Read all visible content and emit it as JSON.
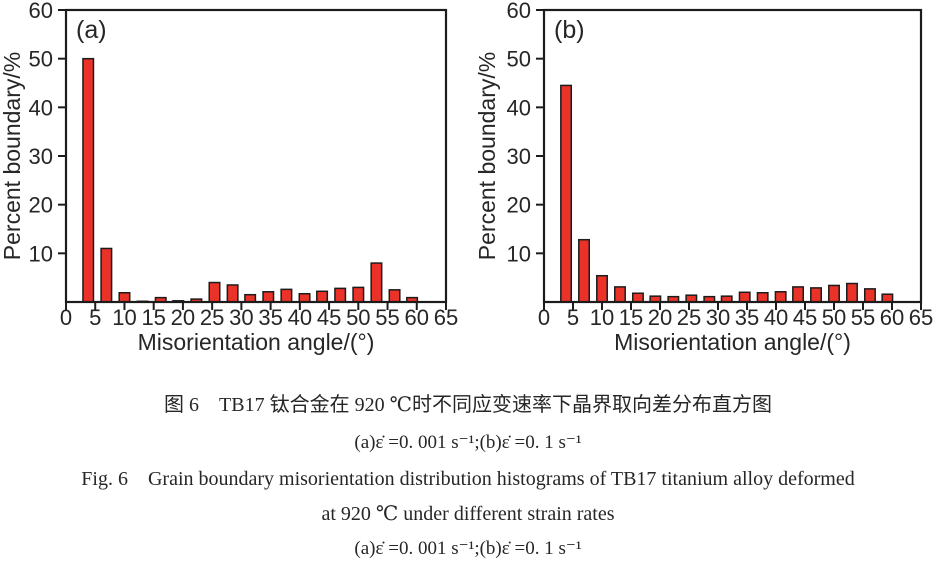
{
  "figure": {
    "caption_cn": "图 6　TB17 钛合金在 920 ℃时不同应变速率下晶界取向差分布直方图",
    "caption_cn_sub": "(a)ε̇ =0. 001 s⁻¹;(b)ε̇ =0. 1 s⁻¹",
    "caption_en_line1": "Fig. 6　Grain boundary misorientation distribution histograms of TB17 titanium alloy deformed",
    "caption_en_line2": "at 920 ℃ under different strain rates",
    "caption_en_sub": "(a)ε̇ =0. 001 s⁻¹;(b)ε̇ =0. 1 s⁻¹"
  },
  "colors": {
    "bar_fill": "#ea3228",
    "bar_stroke": "#1c1c1c",
    "axis": "#1c1c1c",
    "text": "#262626"
  },
  "chart_data": [
    {
      "type": "bar",
      "panel_label": "(a)",
      "title": "",
      "xlabel": "Misorientation angle/(°)",
      "ylabel": "Percent boundary/%",
      "xlim": [
        0,
        65
      ],
      "ylim": [
        0,
        60
      ],
      "x_ticks": [
        0,
        5,
        10,
        15,
        20,
        25,
        30,
        35,
        40,
        45,
        50,
        55,
        60,
        65
      ],
      "y_ticks": [
        10,
        20,
        30,
        40,
        50,
        60
      ],
      "grid": false,
      "legend": "none",
      "bar_width_deg": 1.8,
      "x": [
        3.8,
        6.9,
        10.0,
        13.1,
        16.2,
        19.2,
        22.3,
        25.4,
        28.5,
        31.5,
        34.6,
        37.7,
        40.8,
        43.8,
        46.9,
        50.0,
        53.1,
        56.2,
        59.2
      ],
      "values": [
        50,
        11,
        1.9,
        0.15,
        0.9,
        0.25,
        0.6,
        4.0,
        3.5,
        1.5,
        2.1,
        2.6,
        1.7,
        2.2,
        2.8,
        3.0,
        8.0,
        2.5,
        0.9
      ]
    },
    {
      "type": "bar",
      "panel_label": "(b)",
      "title": "",
      "xlabel": "Misorientation angle/(°)",
      "ylabel": "Percent boundary/%",
      "xlim": [
        0,
        65
      ],
      "ylim": [
        0,
        60
      ],
      "x_ticks": [
        0,
        5,
        10,
        15,
        20,
        25,
        30,
        35,
        40,
        45,
        50,
        55,
        60,
        65
      ],
      "y_ticks": [
        10,
        20,
        30,
        40,
        50,
        60
      ],
      "grid": false,
      "legend": "none",
      "bar_width_deg": 1.8,
      "x": [
        3.8,
        6.9,
        10.0,
        13.1,
        16.2,
        19.2,
        22.3,
        25.4,
        28.5,
        31.5,
        34.6,
        37.7,
        40.8,
        43.8,
        46.9,
        50.0,
        53.1,
        56.2,
        59.2
      ],
      "values": [
        44.5,
        12.8,
        5.4,
        3.1,
        1.8,
        1.2,
        1.1,
        1.4,
        1.1,
        1.2,
        2.0,
        1.9,
        2.1,
        3.1,
        2.9,
        3.4,
        3.8,
        2.7,
        1.6
      ]
    }
  ]
}
